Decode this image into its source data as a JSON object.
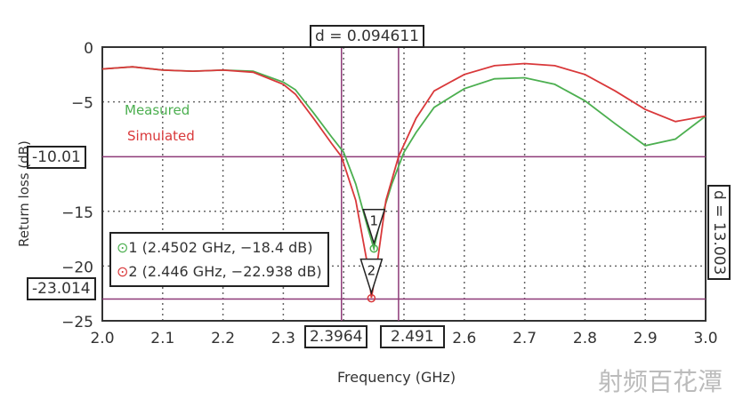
{
  "chart_data": {
    "type": "line",
    "xlabel": "Frequency (GHz)",
    "ylabel": "Return loss (dB)",
    "xlim": [
      2.0,
      3.0
    ],
    "ylim": [
      -25,
      0
    ],
    "xticks": [
      "2.0",
      "2.1",
      "2.2",
      "2.3",
      "2.6",
      "2.7",
      "2.8",
      "2.9",
      "3.0"
    ],
    "xtick_values": [
      2.0,
      2.1,
      2.2,
      2.3,
      2.6,
      2.7,
      2.8,
      2.9,
      3.0
    ],
    "yticks": [
      "0",
      "-5",
      "-15",
      "-20",
      "-25"
    ],
    "ytick_values": [
      0,
      -5,
      -15,
      -20,
      -25
    ],
    "grid": true,
    "legend": {
      "placement": "top-left",
      "entries": [
        "Measured",
        "Simulated"
      ]
    },
    "series": [
      {
        "name": "Measured",
        "color": "#4caf50",
        "x": [
          2.0,
          2.05,
          2.1,
          2.15,
          2.2,
          2.25,
          2.3,
          2.32,
          2.35,
          2.38,
          2.4,
          2.42,
          2.44,
          2.4502,
          2.46,
          2.48,
          2.5,
          2.52,
          2.55,
          2.6,
          2.65,
          2.7,
          2.75,
          2.8,
          2.85,
          2.9,
          2.95,
          3.0
        ],
        "y": [
          -2.0,
          -1.8,
          -2.1,
          -2.2,
          -2.1,
          -2.2,
          -3.2,
          -3.9,
          -6.0,
          -8.2,
          -9.6,
          -12.5,
          -16.5,
          -18.4,
          -16.0,
          -12.5,
          -9.6,
          -7.8,
          -5.5,
          -3.8,
          -2.9,
          -2.8,
          -3.4,
          -4.9,
          -7.0,
          -9.0,
          -8.4,
          -6.3
        ]
      },
      {
        "name": "Simulated",
        "color": "#d9383a",
        "x": [
          2.0,
          2.05,
          2.1,
          2.15,
          2.2,
          2.25,
          2.3,
          2.32,
          2.35,
          2.38,
          2.3964,
          2.42,
          2.44,
          2.446,
          2.455,
          2.47,
          2.491,
          2.52,
          2.55,
          2.6,
          2.65,
          2.7,
          2.75,
          2.8,
          2.85,
          2.9,
          2.95,
          3.0
        ],
        "y": [
          -2.0,
          -1.8,
          -2.1,
          -2.2,
          -2.1,
          -2.3,
          -3.4,
          -4.3,
          -6.5,
          -8.8,
          -10.0,
          -14.0,
          -20.0,
          -22.9,
          -20.0,
          -14.0,
          -10.0,
          -6.5,
          -4.0,
          -2.5,
          -1.7,
          -1.5,
          -1.7,
          -2.5,
          -4.0,
          -5.7,
          -6.8,
          -6.3
        ]
      }
    ],
    "annotations": {
      "hlines": [
        {
          "value": -10.01,
          "label": "-10.01"
        },
        {
          "value": -23.014,
          "label": "-23.014"
        }
      ],
      "vlines": [
        {
          "value": 2.3964,
          "label": "2.3964"
        },
        {
          "value": 2.491,
          "label": "2.491"
        }
      ],
      "delta_x_label": "d = 0.094611",
      "delta_y_label": "d = 13.003",
      "markers": [
        {
          "id": "1",
          "x": 2.4502,
          "y": -18.4,
          "text": "1 (2.4502 GHz, −18.4 dB)",
          "color": "#4caf50"
        },
        {
          "id": "2",
          "x": 2.446,
          "y": -22.938,
          "text": "2 (2.446 GHz, −22.938 dB)",
          "color": "#d9383a"
        }
      ],
      "line_color": "#8e3a78"
    }
  },
  "watermark": "射频百花潭"
}
